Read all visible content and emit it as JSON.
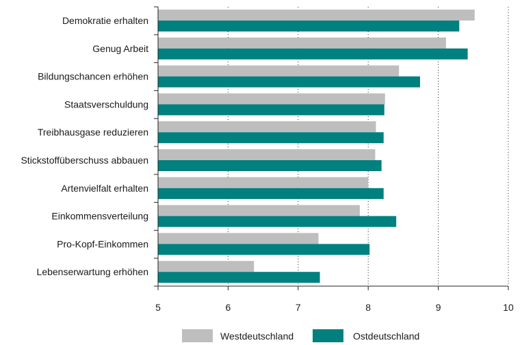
{
  "chart_data": {
    "type": "bar",
    "orientation": "horizontal",
    "categories": [
      "Demokratie erhalten",
      "Genug Arbeit",
      "Bildungschancen erhöhen",
      "Staatsverschuldung",
      "Treibhausgase reduzieren",
      "Stickstoffüberschuss abbauen",
      "Artenvielfalt erhalten",
      "Einkommensverteilung",
      "Pro-Kopf-Einkommen",
      "Lebenserwartung erhöhen"
    ],
    "series": [
      {
        "name": "Westdeutschland",
        "color": "#bebebe",
        "values": [
          9.52,
          9.11,
          8.44,
          8.24,
          8.11,
          8.1,
          8.0,
          7.88,
          7.29,
          6.37
        ]
      },
      {
        "name": "Ostdeutschland",
        "color": "#00807f",
        "values": [
          9.3,
          9.42,
          8.74,
          8.23,
          8.22,
          8.19,
          8.22,
          8.4,
          8.02,
          7.31
        ]
      }
    ],
    "xlim": [
      5,
      10
    ],
    "xticks": [
      "5",
      "6",
      "7",
      "8",
      "9",
      "10"
    ],
    "grid": "vertical dotted",
    "legend_position": "bottom-center"
  }
}
